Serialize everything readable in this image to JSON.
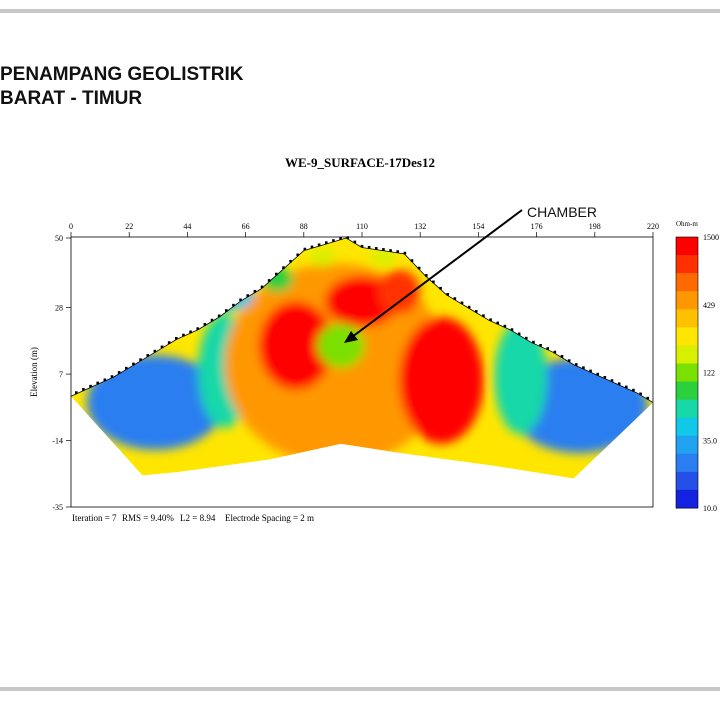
{
  "slide": {
    "title_line1": "PENAMPANG GEOLISTRIK",
    "title_line2": "BARAT - TIMUR"
  },
  "chart_data": {
    "type": "heatmap",
    "title": "WE-9_SURFACE-17Des12",
    "xlabel": "",
    "ylabel": "Elevation (m)",
    "x_ticks": [
      "0",
      "22",
      "44",
      "66",
      "88",
      "110",
      "132",
      "154",
      "176",
      "198",
      "220"
    ],
    "y_ticks": [
      "50",
      "28",
      "7",
      "-14",
      "-35"
    ],
    "xlim": [
      0,
      220
    ],
    "ylim": [
      -35,
      50
    ],
    "colorbar": {
      "unit": "Ohm-m",
      "labels": [
        "1500",
        "429",
        "122",
        "35.0",
        "10.0"
      ],
      "scale": "log",
      "range": [
        10,
        1500
      ],
      "colors": [
        "#ff0000",
        "#ff3000",
        "#ff6a00",
        "#ff9800",
        "#ffc000",
        "#ffe600",
        "#d8f000",
        "#7ae000",
        "#2ccf3c",
        "#19d8a8",
        "#12c8e8",
        "#20a2f0",
        "#2a7ef0",
        "#2450e8",
        "#1222e0"
      ]
    },
    "annotation": "CHAMBER",
    "footer": {
      "iteration": "Iteration = 7",
      "rms": "RMS = 9.40%",
      "l2": "L2 = 8.94",
      "spacing": "Electrode Spacing = 2 m"
    },
    "surface_profile": [
      {
        "x": 0,
        "y": 0
      },
      {
        "x": 8,
        "y": 3
      },
      {
        "x": 16,
        "y": 6
      },
      {
        "x": 24,
        "y": 10
      },
      {
        "x": 32,
        "y": 14
      },
      {
        "x": 40,
        "y": 18
      },
      {
        "x": 48,
        "y": 21
      },
      {
        "x": 56,
        "y": 25
      },
      {
        "x": 64,
        "y": 30
      },
      {
        "x": 72,
        "y": 34
      },
      {
        "x": 80,
        "y": 40
      },
      {
        "x": 88,
        "y": 46
      },
      {
        "x": 96,
        "y": 48
      },
      {
        "x": 104,
        "y": 50
      },
      {
        "x": 110,
        "y": 47
      },
      {
        "x": 118,
        "y": 46
      },
      {
        "x": 126,
        "y": 45
      },
      {
        "x": 134,
        "y": 38
      },
      {
        "x": 142,
        "y": 32
      },
      {
        "x": 150,
        "y": 28
      },
      {
        "x": 158,
        "y": 24
      },
      {
        "x": 166,
        "y": 21
      },
      {
        "x": 174,
        "y": 17
      },
      {
        "x": 182,
        "y": 14
      },
      {
        "x": 190,
        "y": 10
      },
      {
        "x": 198,
        "y": 7
      },
      {
        "x": 206,
        "y": 4
      },
      {
        "x": 214,
        "y": 1
      },
      {
        "x": 220,
        "y": -2
      }
    ],
    "bottom_profile": [
      {
        "x": 220,
        "y": -2
      },
      {
        "x": 190,
        "y": -26
      },
      {
        "x": 160,
        "y": -22
      },
      {
        "x": 125,
        "y": -18
      },
      {
        "x": 102,
        "y": -15
      },
      {
        "x": 75,
        "y": -20
      },
      {
        "x": 40,
        "y": -24
      },
      {
        "x": 27,
        "y": -25
      },
      {
        "x": 0,
        "y": 0
      }
    ],
    "resistivity_bodies": [
      {
        "x": 32,
        "y": -2,
        "rx": 26,
        "ry": 15,
        "value": 20
      },
      {
        "x": 192,
        "y": -3,
        "rx": 26,
        "ry": 15,
        "value": 20
      },
      {
        "x": 58,
        "y": 8,
        "rx": 10,
        "ry": 18,
        "value": 60
      },
      {
        "x": 170,
        "y": 6,
        "rx": 10,
        "ry": 18,
        "value": 60
      },
      {
        "x": 100,
        "y": 10,
        "rx": 42,
        "ry": 32,
        "value": 500
      },
      {
        "x": 85,
        "y": 16,
        "rx": 14,
        "ry": 14,
        "value": 1500
      },
      {
        "x": 110,
        "y": 30,
        "rx": 14,
        "ry": 8,
        "value": 1300
      },
      {
        "x": 140,
        "y": 5,
        "rx": 16,
        "ry": 20,
        "value": 1500
      },
      {
        "x": 124,
        "y": 33,
        "rx": 8,
        "ry": 7,
        "value": 1200
      },
      {
        "x": 102,
        "y": 16,
        "rx": 9,
        "ry": 7,
        "value": 130
      },
      {
        "x": 60,
        "y": 32,
        "rx": 9,
        "ry": 5,
        "value": 40
      },
      {
        "x": 78,
        "y": 37,
        "rx": 6,
        "ry": 4,
        "value": 100
      },
      {
        "x": 118,
        "y": 44,
        "rx": 5,
        "ry": 3,
        "value": 180
      },
      {
        "x": 95,
        "y": 44,
        "rx": 5,
        "ry": 3,
        "value": 200
      }
    ]
  }
}
